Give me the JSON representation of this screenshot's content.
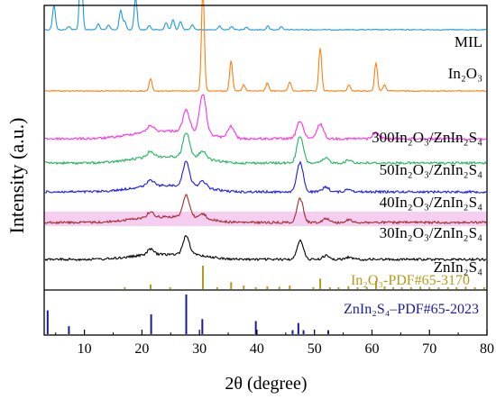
{
  "chart_data": {
    "type": "line",
    "xlabel": "2θ (degree)",
    "ylabel": "Intensity (a.u.)",
    "xlim": [
      3,
      80
    ],
    "x_ticks": [
      10,
      20,
      30,
      40,
      50,
      60,
      70,
      80
    ],
    "series": [
      {
        "name": "MIL",
        "color": "#1f9bd7",
        "peaks": [
          [
            4.7,
            0.35
          ],
          [
            7.3,
            0.05
          ],
          [
            9.4,
            1.0
          ],
          [
            12.4,
            0.08
          ],
          [
            14.2,
            0.07
          ],
          [
            16.3,
            0.28
          ],
          [
            17.0,
            0.12
          ],
          [
            18.9,
            0.46
          ],
          [
            21.3,
            0.06
          ],
          [
            24.2,
            0.1
          ],
          [
            25.4,
            0.14
          ],
          [
            26.7,
            0.12
          ],
          [
            28.8,
            0.07
          ],
          [
            33.5,
            0.05
          ],
          [
            35.6,
            0.05
          ],
          [
            38.2,
            0.04
          ],
          [
            41.9,
            0.05
          ],
          [
            44.2,
            0.04
          ]
        ]
      },
      {
        "name": "In₂O₃",
        "color": "#ff7f0e",
        "peaks": [
          [
            21.5,
            0.12
          ],
          [
            30.6,
            1.0
          ],
          [
            35.5,
            0.3
          ],
          [
            37.7,
            0.06
          ],
          [
            41.8,
            0.08
          ],
          [
            45.7,
            0.09
          ],
          [
            51.0,
            0.42
          ],
          [
            56.0,
            0.06
          ],
          [
            60.7,
            0.28
          ],
          [
            62.2,
            0.06
          ]
        ]
      },
      {
        "name": "300In₂O₃/ZnIn₂S₄",
        "color": "#ff2ee6",
        "peaks": [
          [
            21.5,
            0.1
          ],
          [
            27.7,
            0.35
          ],
          [
            30.6,
            0.65
          ],
          [
            35.5,
            0.2
          ],
          [
            47.5,
            0.3
          ],
          [
            51.0,
            0.25
          ],
          [
            60.7,
            0.1
          ]
        ]
      },
      {
        "name": "50In₂O₃/ZnIn₂S₄",
        "color": "#1fb45c",
        "peaks": [
          [
            21.5,
            0.12
          ],
          [
            27.7,
            0.5
          ],
          [
            30.6,
            0.15
          ],
          [
            47.5,
            0.55
          ],
          [
            52.0,
            0.1
          ],
          [
            56.0,
            0.06
          ]
        ]
      },
      {
        "name": "40In₂O₃/ZnIn₂S₄",
        "color": "#1a1ae6",
        "peaks": [
          [
            21.5,
            0.12
          ],
          [
            27.7,
            0.5
          ],
          [
            30.6,
            0.12
          ],
          [
            47.5,
            0.6
          ],
          [
            52.0,
            0.1
          ],
          [
            56.0,
            0.06
          ]
        ]
      },
      {
        "name": "30In₂O₃/ZnIn₂S₄",
        "color": "#a52a2a",
        "peaks": [
          [
            21.5,
            0.12
          ],
          [
            27.7,
            0.5
          ],
          [
            30.6,
            0.1
          ],
          [
            47.5,
            0.55
          ],
          [
            52.0,
            0.1
          ],
          [
            56.0,
            0.06
          ]
        ]
      },
      {
        "name": "ZnIn₂S₄",
        "color": "#000000",
        "peaks": [
          [
            21.5,
            0.15
          ],
          [
            27.7,
            0.5
          ],
          [
            47.5,
            0.5
          ],
          [
            52.0,
            0.1
          ],
          [
            56.0,
            0.06
          ]
        ]
      }
    ],
    "references": [
      {
        "name": "In₂O₃-PDF#65-3170",
        "color": "#b59a1a",
        "lines": [
          [
            17.0,
            0.08
          ],
          [
            21.5,
            0.2
          ],
          [
            24.9,
            0.08
          ],
          [
            30.6,
            1.0
          ],
          [
            33.1,
            0.08
          ],
          [
            35.5,
            0.3
          ],
          [
            37.7,
            0.15
          ],
          [
            39.8,
            0.08
          ],
          [
            41.8,
            0.12
          ],
          [
            43.9,
            0.1
          ],
          [
            45.7,
            0.15
          ],
          [
            49.8,
            0.08
          ],
          [
            51.0,
            0.45
          ],
          [
            52.7,
            0.08
          ],
          [
            54.2,
            0.08
          ],
          [
            55.9,
            0.12
          ],
          [
            57.5,
            0.08
          ],
          [
            59.1,
            0.08
          ],
          [
            60.7,
            0.35
          ],
          [
            62.2,
            0.12
          ],
          [
            63.7,
            0.08
          ],
          [
            65.2,
            0.08
          ],
          [
            66.8,
            0.08
          ],
          [
            68.4,
            0.1
          ],
          [
            70.0,
            0.08
          ],
          [
            71.6,
            0.08
          ],
          [
            73.2,
            0.08
          ],
          [
            74.7,
            0.08
          ],
          [
            76.3,
            0.1
          ],
          [
            77.9,
            0.08
          ],
          [
            79.5,
            0.08
          ]
        ]
      },
      {
        "name": "ZnIn₂S₄–PDF#65-2023",
        "color": "#1a1a9a",
        "lines": [
          [
            3.6,
            0.6
          ],
          [
            7.3,
            0.2
          ],
          [
            21.6,
            0.5
          ],
          [
            27.7,
            1.0
          ],
          [
            30.5,
            0.38
          ],
          [
            39.8,
            0.33
          ],
          [
            46.2,
            0.1
          ],
          [
            47.2,
            0.28
          ],
          [
            48.1,
            0.1
          ],
          [
            52.4,
            0.1
          ]
        ]
      }
    ],
    "highlight": {
      "series": "30In₂O₃/ZnIn₂S₄",
      "color": "#f3c6ee"
    }
  }
}
